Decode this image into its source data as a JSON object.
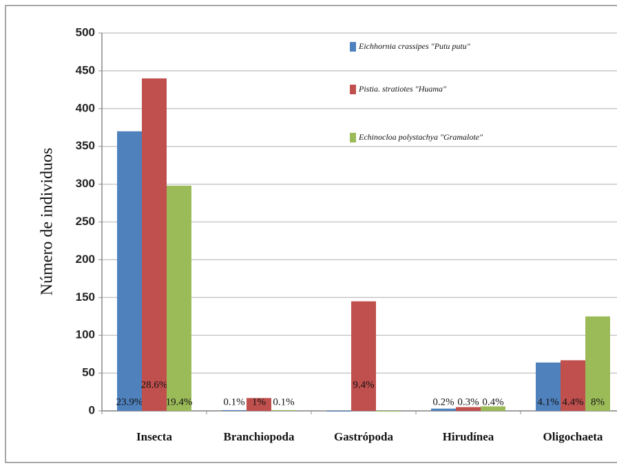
{
  "chart_data": {
    "type": "bar",
    "y_label": "Número de individuos",
    "categories": [
      "Insecta",
      "Branchiopoda",
      "Gastrópoda",
      "Hirudínea",
      "Oligochaeta"
    ],
    "series": [
      {
        "name": "Eichhornia crassipes \"Putu putu\"",
        "color": "#4f81bd",
        "values": [
          370,
          1,
          0,
          3,
          64
        ],
        "labels": [
          "23.9%",
          "0.1%",
          null,
          "0.2%",
          "4.1%"
        ]
      },
      {
        "name": "Pistia. stratiotes \"Huama\"",
        "color": "#c0504d",
        "values": [
          440,
          17,
          145,
          5,
          67
        ],
        "labels": [
          "28.6%",
          "1%",
          "9.4%",
          "0.3%",
          "4.4%"
        ]
      },
      {
        "name": "Echinocloa polystachya \"Gramalote\"",
        "color": "#9bbb59",
        "values": [
          298,
          1,
          0,
          6,
          125
        ],
        "labels": [
          "19.4%",
          "0.1%",
          null,
          "0.4%",
          "8%"
        ]
      }
    ],
    "ylim": [
      0,
      500
    ],
    "yticks": [
      0,
      50,
      100,
      150,
      200,
      250,
      300,
      350,
      400,
      450,
      500
    ],
    "grid": true
  }
}
